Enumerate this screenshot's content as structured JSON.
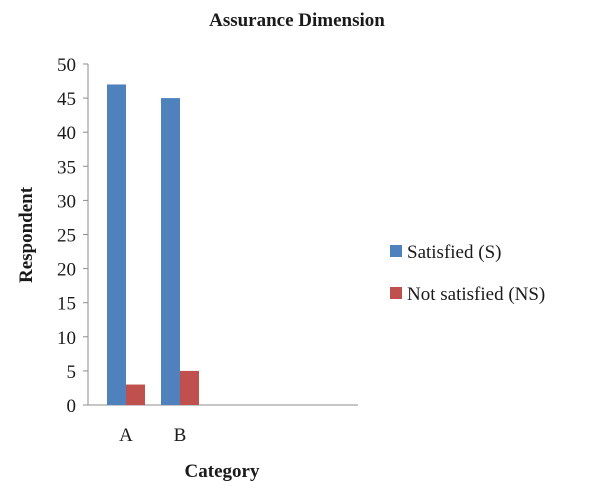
{
  "chart_data": {
    "type": "bar",
    "title": "Assurance Dimension",
    "xlabel": "Category",
    "ylabel": "Respondent",
    "categories": [
      "A",
      "B"
    ],
    "series": [
      {
        "name": "Satisfied (S)",
        "values": [
          47,
          45
        ],
        "color": "#4F81BD"
      },
      {
        "name": "Not satisfied (NS)",
        "values": [
          3,
          5
        ],
        "color": "#C0504D"
      }
    ],
    "ylim": [
      0,
      50
    ],
    "yticks": [
      "0",
      "5",
      "10",
      "15",
      "20",
      "25",
      "30",
      "35",
      "40",
      "45",
      "50"
    ],
    "grid": false,
    "legend_position": "right"
  }
}
